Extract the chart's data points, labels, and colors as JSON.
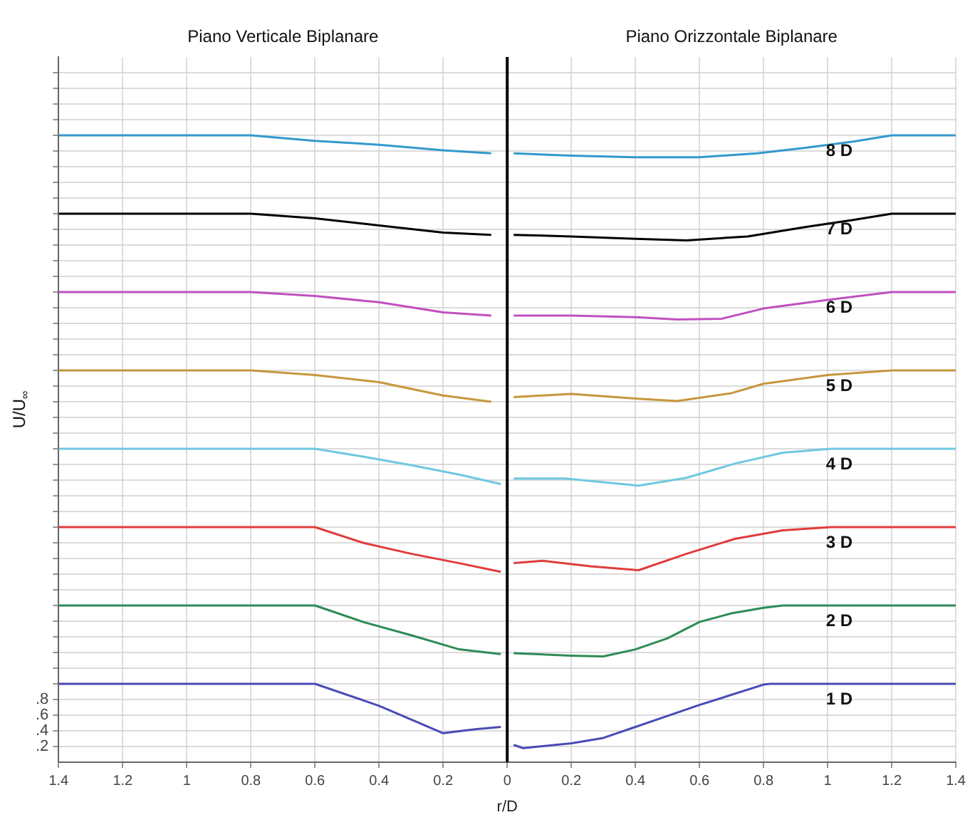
{
  "chart_data": {
    "type": "line",
    "annotations": [
      "Piano Verticale Biplanare",
      "Piano Orizzontale Biplanare"
    ],
    "xlabel": "r/D",
    "ylabel": "U/U$_{∞}$",
    "xlim": [
      -1.4,
      1.4
    ],
    "xticks": [
      {
        "value": -1.4,
        "label": "1.4"
      },
      {
        "value": -1.2,
        "label": "1.2"
      },
      {
        "value": -1,
        "label": "1"
      },
      {
        "value": -0.8,
        "label": "0.8"
      },
      {
        "value": -0.6,
        "label": "0.6"
      },
      {
        "value": -0.4,
        "label": "0.4"
      },
      {
        "value": -0.2,
        "label": "0.2"
      },
      0,
      0.2,
      0.4,
      0.6,
      0.8,
      1,
      1.2,
      1.4
    ],
    "ylim": [
      0,
      9
    ],
    "yticks": [
      {
        "value": 0.2,
        "label": ".2"
      },
      {
        "value": 0.4,
        "label": ".4"
      },
      {
        "value": 0.6,
        "label": ".6"
      },
      {
        "value": 0.8,
        "label": ".8"
      },
      {
        "value": 1,
        "label": null
      },
      {
        "value": 1.2,
        "label": null
      },
      {
        "value": 1.4,
        "label": null
      },
      {
        "value": 1.6,
        "label": null
      },
      {
        "value": 1.8,
        "label": null
      },
      {
        "value": 2,
        "label": null
      },
      {
        "value": 2.2,
        "label": null
      },
      {
        "value": 2.4,
        "label": null
      },
      {
        "value": 2.6,
        "label": null
      },
      {
        "value": 2.8,
        "label": null
      },
      {
        "value": 3,
        "label": null
      },
      {
        "value": 3.2,
        "label": null
      },
      {
        "value": 3.4,
        "label": null
      },
      {
        "value": 3.6,
        "label": null
      },
      {
        "value": 3.8,
        "label": null
      },
      {
        "value": 4,
        "label": null
      },
      {
        "value": 4.2,
        "label": null
      },
      {
        "value": 4.4,
        "label": null
      },
      {
        "value": 4.6,
        "label": null
      },
      {
        "value": 4.8,
        "label": null
      },
      {
        "value": 5,
        "label": null
      },
      {
        "value": 5.2,
        "label": null
      },
      {
        "value": 5.4,
        "label": null
      },
      {
        "value": 5.6,
        "label": null
      },
      {
        "value": 5.8,
        "label": null
      },
      {
        "value": 6,
        "label": null
      },
      {
        "value": 6.2,
        "label": null
      },
      {
        "value": 6.4,
        "label": null
      },
      {
        "value": 6.6,
        "label": null
      },
      {
        "value": 6.8,
        "label": null
      },
      {
        "value": 7,
        "label": null
      },
      {
        "value": 7.2,
        "label": null
      },
      {
        "value": 7.4,
        "label": null
      },
      {
        "value": 7.6,
        "label": null
      },
      {
        "value": 7.8,
        "label": null
      },
      {
        "value": 8,
        "label": null
      },
      {
        "value": 8.2,
        "label": null
      },
      {
        "value": 8.4,
        "label": null
      },
      {
        "value": 8.6,
        "label": null
      },
      {
        "value": 8.8,
        "label": null
      }
    ],
    "grid": true,
    "legend": false,
    "marker": "none",
    "line_style": "solid",
    "ref_lines": [
      {
        "axis": "x",
        "value": 0,
        "color": "#000000"
      }
    ],
    "series": [
      {
        "name": "1 D",
        "color": "#4a4ab8",
        "x": [
          -1.4,
          -0.6,
          -0.4,
          -0.2,
          -0.1,
          -0.02,
          0,
          0.02,
          0.05,
          0.2,
          0.3,
          0.4,
          0.6,
          0.8,
          0.82,
          1.4
        ],
        "values": [
          1,
          1,
          0.72,
          0.37,
          0.42,
          0.45,
          null,
          0.22,
          0.18,
          0.24,
          0.31,
          0.45,
          0.73,
          0.99,
          1,
          1
        ]
      },
      {
        "name": "2 D",
        "color": "#2e8b57",
        "x": [
          -1.4,
          -0.6,
          -0.45,
          -0.3,
          -0.15,
          -0.02,
          0,
          0.02,
          0.2,
          0.3,
          0.4,
          0.5,
          0.6,
          0.7,
          0.8,
          0.86,
          1.4
        ],
        "values": [
          2,
          2,
          1.79,
          1.62,
          1.44,
          1.38,
          null,
          1.39,
          1.36,
          1.35,
          1.44,
          1.58,
          1.79,
          1.9,
          1.97,
          2,
          2
        ]
      },
      {
        "name": "3 D",
        "color": "#e03c3c",
        "x": [
          -1.4,
          -0.6,
          -0.45,
          -0.3,
          -0.15,
          -0.02,
          0,
          0.02,
          0.11,
          0.26,
          0.41,
          0.56,
          0.71,
          0.86,
          1.01,
          1.4
        ],
        "values": [
          3,
          3,
          2.8,
          2.66,
          2.54,
          2.43,
          null,
          2.54,
          2.57,
          2.5,
          2.45,
          2.66,
          2.85,
          2.96,
          3,
          3
        ]
      },
      {
        "name": "4 D",
        "color": "#6fc8e0",
        "x": [
          -1.4,
          -0.6,
          -0.45,
          -0.3,
          -0.15,
          -0.02,
          0,
          0.02,
          0.18,
          0.41,
          0.56,
          0.71,
          0.86,
          1.01,
          1.4
        ],
        "values": [
          4,
          4,
          3.9,
          3.79,
          3.67,
          3.55,
          null,
          3.62,
          3.62,
          3.53,
          3.63,
          3.81,
          3.95,
          4,
          4
        ]
      },
      {
        "name": "5 D",
        "color": "#c8963c",
        "x": [
          -1.4,
          -0.8,
          -0.6,
          -0.4,
          -0.2,
          -0.05,
          0,
          0.02,
          0.2,
          0.4,
          0.53,
          0.7,
          0.8,
          1.0,
          1.2,
          1.4
        ],
        "values": [
          5,
          5,
          4.94,
          4.85,
          4.68,
          4.6,
          null,
          4.66,
          4.7,
          4.64,
          4.61,
          4.71,
          4.83,
          4.94,
          5,
          5
        ]
      },
      {
        "name": "6 D",
        "color": "#c050c0",
        "x": [
          -1.4,
          -0.8,
          -0.6,
          -0.4,
          -0.2,
          -0.05,
          0,
          0.02,
          0.2,
          0.4,
          0.53,
          0.67,
          0.8,
          1.0,
          1.2,
          1.4
        ],
        "values": [
          6,
          6,
          5.95,
          5.87,
          5.74,
          5.7,
          null,
          5.7,
          5.7,
          5.68,
          5.65,
          5.66,
          5.79,
          5.9,
          6,
          6
        ]
      },
      {
        "name": "7 D",
        "color": "#000000",
        "x": [
          -1.4,
          -0.8,
          -0.6,
          -0.4,
          -0.2,
          -0.05,
          0,
          0.02,
          0.2,
          0.4,
          0.56,
          0.75,
          0.93,
          1.08,
          1.2,
          1.4
        ],
        "values": [
          7,
          7,
          6.94,
          6.85,
          6.76,
          6.73,
          null,
          6.73,
          6.71,
          6.68,
          6.66,
          6.71,
          6.83,
          6.92,
          7,
          7
        ]
      },
      {
        "name": "8 D",
        "color": "#3399cc",
        "x": [
          -1.4,
          -0.8,
          -0.6,
          -0.4,
          -0.2,
          -0.05,
          0,
          0.02,
          0.2,
          0.4,
          0.6,
          0.78,
          0.93,
          1.08,
          1.2,
          1.4
        ],
        "values": [
          8,
          8,
          7.93,
          7.88,
          7.81,
          7.77,
          null,
          7.77,
          7.74,
          7.72,
          7.72,
          7.77,
          7.84,
          7.92,
          8,
          8
        ]
      }
    ]
  }
}
